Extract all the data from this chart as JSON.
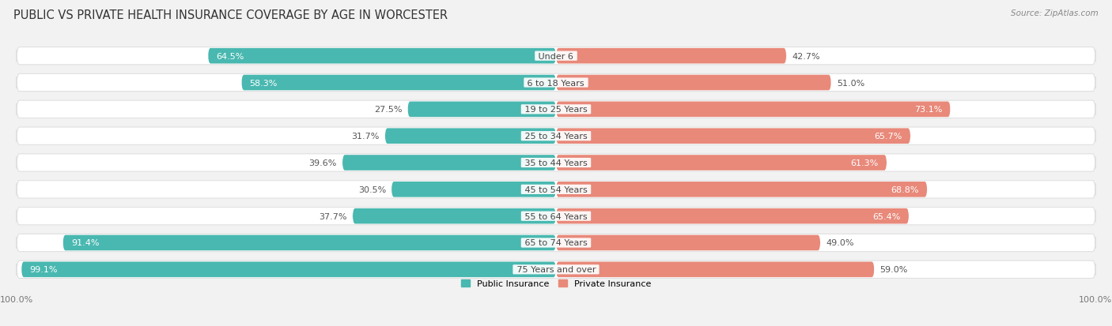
{
  "title": "PUBLIC VS PRIVATE HEALTH INSURANCE COVERAGE BY AGE IN WORCESTER",
  "source": "Source: ZipAtlas.com",
  "categories": [
    "Under 6",
    "6 to 18 Years",
    "19 to 25 Years",
    "25 to 34 Years",
    "35 to 44 Years",
    "45 to 54 Years",
    "55 to 64 Years",
    "65 to 74 Years",
    "75 Years and over"
  ],
  "public_values": [
    64.5,
    58.3,
    27.5,
    31.7,
    39.6,
    30.5,
    37.7,
    91.4,
    99.1
  ],
  "private_values": [
    42.7,
    51.0,
    73.1,
    65.7,
    61.3,
    68.8,
    65.4,
    49.0,
    59.0
  ],
  "public_color": "#49b8b0",
  "private_color": "#e8897a",
  "private_color_dark": "#d96b5a",
  "private_color_light": "#f0b0a5",
  "background_color": "#f2f2f2",
  "row_bg_color": "#ffffff",
  "row_border_color": "#e0e0e0",
  "max_value": 100.0,
  "legend_public": "Public Insurance",
  "legend_private": "Private Insurance",
  "title_fontsize": 10.5,
  "source_fontsize": 7.5,
  "label_fontsize": 8,
  "category_fontsize": 8,
  "tick_fontsize": 8
}
